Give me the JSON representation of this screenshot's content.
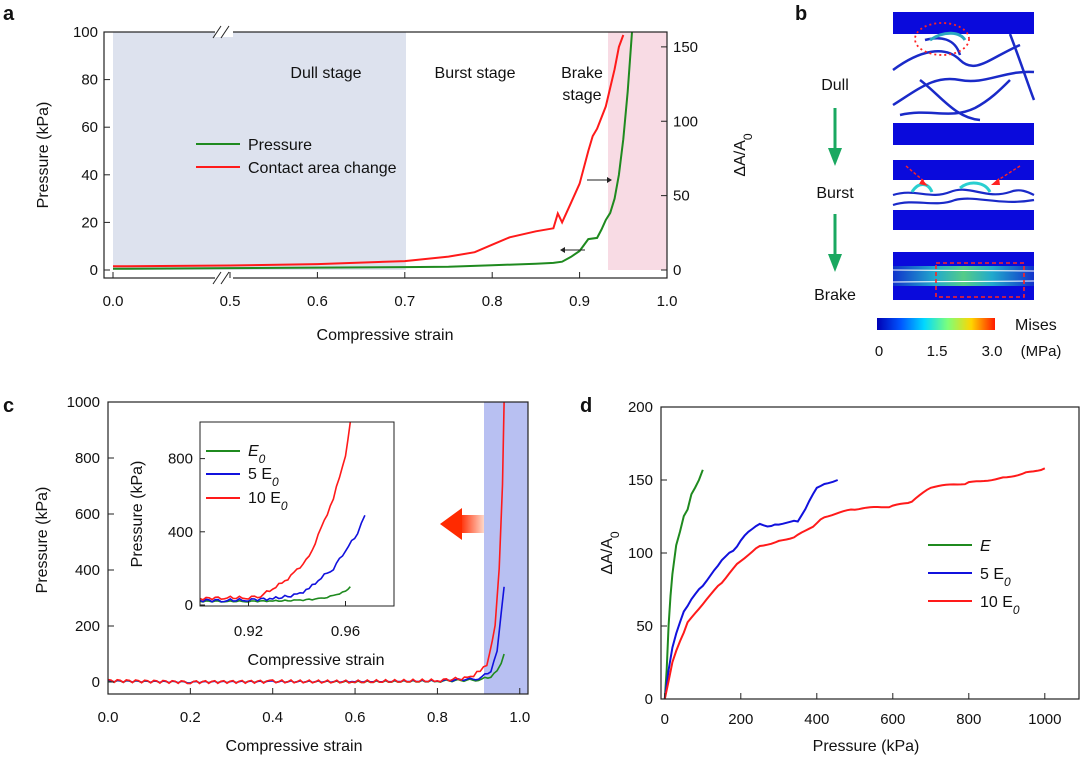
{
  "panel_labels": [
    "a",
    "b",
    "c",
    "d"
  ],
  "colors": {
    "pressure": "#1f8a1f",
    "contact": "#ff1a1a",
    "blue": "#1111dd",
    "shade_gray": "#dde2ee",
    "shade_pink": "#f8dbe4",
    "shade_blue": "#b8c0f2",
    "arrow_green": "#1aa860"
  },
  "chart_data": [
    {
      "panel": "a",
      "type": "line",
      "xlabel": "Compressive strain",
      "ylabel": "Pressure (kPa)",
      "y2label_main": "ΔA/A",
      "y2label_sub": "0",
      "x_ticks": [
        "0.0",
        "0.5",
        "0.6",
        "0.7",
        "0.8",
        "0.9",
        "1.0"
      ],
      "y_ticks": [
        "0",
        "20",
        "40",
        "60",
        "80",
        "100"
      ],
      "y2_ticks": [
        "0",
        "50",
        "100",
        "150"
      ],
      "ylim": [
        0,
        100
      ],
      "y2lim": [
        0,
        160
      ],
      "stages": [
        "Dull stage",
        "Burst stage",
        "Brake",
        "stage"
      ],
      "legend": [
        "Pressure",
        "Contact area change"
      ],
      "series": [
        {
          "name": "Pressure",
          "axis": "left",
          "x": [
            0.0,
            0.5,
            0.6,
            0.7,
            0.75,
            0.8,
            0.85,
            0.87,
            0.88,
            0.89,
            0.9,
            0.91,
            0.92,
            0.925,
            0.93,
            0.935,
            0.94,
            0.945,
            0.95,
            0.955,
            0.96
          ],
          "y": [
            0.5,
            0.8,
            1.0,
            1.2,
            1.4,
            2.0,
            2.6,
            3.0,
            3.5,
            5.5,
            8.0,
            13.0,
            13.5,
            17.0,
            21.0,
            24.0,
            30.0,
            40.0,
            55.0,
            75.0,
            100.0
          ]
        },
        {
          "name": "Contact area change",
          "axis": "right",
          "x": [
            0.0,
            0.5,
            0.6,
            0.7,
            0.75,
            0.78,
            0.8,
            0.82,
            0.85,
            0.87,
            0.875,
            0.88,
            0.89,
            0.9,
            0.91,
            0.915,
            0.92,
            0.93,
            0.94,
            0.945,
            0.95
          ],
          "y": [
            2.5,
            3.0,
            4.0,
            6.0,
            9.0,
            12.0,
            17.0,
            22.0,
            26.0,
            28.0,
            38.0,
            32.0,
            45.0,
            58.0,
            80.0,
            90.0,
            95.0,
            110.0,
            135.0,
            150.0,
            158.0
          ]
        }
      ]
    },
    {
      "panel": "c",
      "type": "line",
      "xlabel": "Compressive strain",
      "ylabel": "Pressure (kPa)",
      "x_ticks": [
        "0.0",
        "0.2",
        "0.4",
        "0.6",
        "0.8",
        "1.0"
      ],
      "y_ticks": [
        "0",
        "200",
        "400",
        "600",
        "800",
        "1000"
      ],
      "xlim": [
        0.0,
        1.02
      ],
      "ylim": [
        0,
        1000
      ],
      "series": [
        {
          "name": "E0",
          "x": [
            0.0,
            0.2,
            0.4,
            0.6,
            0.8,
            0.9,
            0.93,
            0.945,
            0.955,
            0.962
          ],
          "y": [
            3,
            0,
            2,
            0,
            3,
            8,
            20,
            40,
            70,
            100
          ]
        },
        {
          "name": "5 E0",
          "x": [
            0.0,
            0.2,
            0.4,
            0.6,
            0.8,
            0.9,
            0.93,
            0.945,
            0.955,
            0.962
          ],
          "y": [
            4,
            0,
            1,
            2,
            4,
            12,
            40,
            110,
            250,
            340
          ]
        },
        {
          "name": "10 E0",
          "x": [
            0.0,
            0.2,
            0.4,
            0.6,
            0.8,
            0.88,
            0.92,
            0.94,
            0.95,
            0.958,
            0.962
          ],
          "y": [
            5,
            0,
            2,
            1,
            5,
            15,
            60,
            200,
            400,
            700,
            1000
          ]
        }
      ],
      "inset": {
        "xlabel": "Compressive strain",
        "ylabel": "Pressure (kPa)",
        "x_ticks": [
          "0.92",
          "0.96"
        ],
        "y_ticks": [
          "0",
          "400",
          "800"
        ],
        "xlim": [
          0.9,
          0.98
        ],
        "ylim": [
          0,
          1000
        ],
        "legend_main": [
          "E",
          "5 E",
          "10 E"
        ],
        "legend_sub": [
          "0",
          "0",
          "0"
        ],
        "series": [
          {
            "name": "E0",
            "x": [
              0.9,
              0.91,
              0.92,
              0.93,
              0.94,
              0.95,
              0.955,
              0.96,
              0.962
            ],
            "y": [
              20,
              20,
              20,
              22,
              25,
              35,
              50,
              75,
              100
            ]
          },
          {
            "name": "5 E0",
            "x": [
              0.9,
              0.91,
              0.92,
              0.93,
              0.94,
              0.945,
              0.95,
              0.955,
              0.96,
              0.965,
              0.968
            ],
            "y": [
              25,
              25,
              28,
              35,
              55,
              90,
              150,
              200,
              300,
              390,
              490
            ]
          },
          {
            "name": "10 E0",
            "x": [
              0.9,
              0.91,
              0.92,
              0.925,
              0.93,
              0.935,
              0.94,
              0.945,
              0.95,
              0.955,
              0.96,
              0.962
            ],
            "y": [
              35,
              40,
              40,
              50,
              90,
              130,
              190,
              260,
              420,
              580,
              820,
              1000
            ]
          }
        ]
      }
    },
    {
      "panel": "d",
      "type": "line",
      "xlabel": "Pressure (kPa)",
      "ylabel_main": "ΔA/A",
      "ylabel_sub": "0",
      "x_ticks": [
        "0",
        "200",
        "400",
        "600",
        "800",
        "1000"
      ],
      "y_ticks": [
        "0",
        "50",
        "100",
        "150",
        "200"
      ],
      "xlim": [
        -10,
        1090
      ],
      "ylim": [
        0,
        200
      ],
      "legend_main": [
        "E",
        "5 E",
        "10 E"
      ],
      "legend_sub": [
        "",
        "0",
        "0"
      ],
      "series": [
        {
          "name": "E",
          "x": [
            0,
            5,
            10,
            15,
            20,
            25,
            30,
            40,
            50,
            60,
            70,
            80,
            90,
            100
          ],
          "y": [
            0,
            20,
            50,
            70,
            85,
            95,
            105,
            115,
            125,
            130,
            140,
            145,
            150,
            157
          ]
        },
        {
          "name": "5 E0",
          "x": [
            0,
            10,
            20,
            30,
            50,
            70,
            100,
            130,
            150,
            180,
            200,
            220,
            250,
            280,
            300,
            350,
            380,
            400,
            430,
            455
          ],
          "y": [
            0,
            20,
            35,
            45,
            60,
            68,
            78,
            88,
            95,
            102,
            108,
            115,
            120,
            118,
            120,
            122,
            135,
            145,
            148,
            150
          ]
        },
        {
          "name": "10 E0",
          "x": [
            0,
            20,
            40,
            60,
            100,
            150,
            200,
            250,
            300,
            350,
            400,
            420,
            500,
            600,
            650,
            700,
            800,
            900,
            950,
            1000
          ],
          "y": [
            0,
            25,
            40,
            52,
            65,
            80,
            95,
            105,
            108,
            112,
            120,
            125,
            130,
            132,
            135,
            145,
            148,
            152,
            155,
            158
          ]
        }
      ]
    }
  ],
  "simulation": {
    "labels": [
      "Dull",
      "Burst",
      "Brake"
    ],
    "colorbar_title": "Mises",
    "colorbar_ticks": [
      "0",
      "1.5",
      "3.0"
    ],
    "colorbar_unit": "(MPa)"
  }
}
